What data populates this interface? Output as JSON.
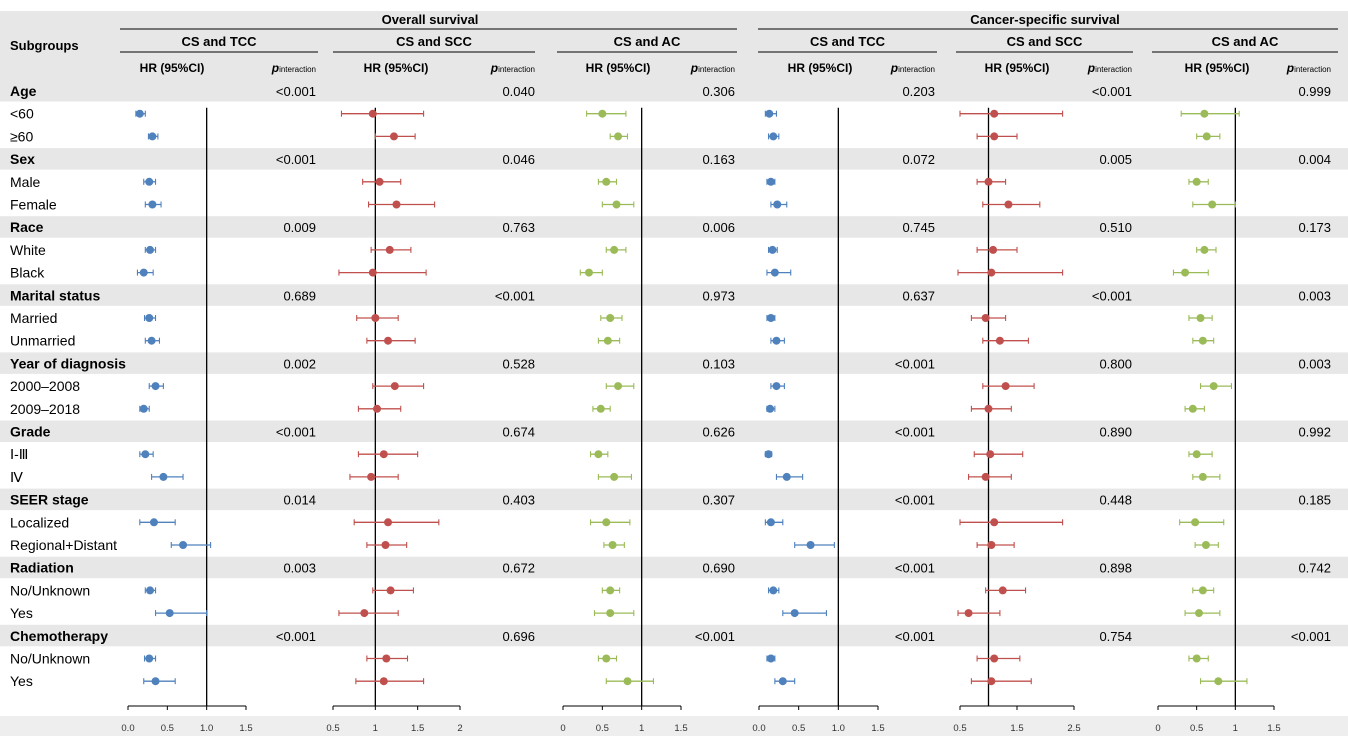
{
  "header": {
    "subgroups_label": "Subgroups",
    "overall_label": "Overall survival",
    "cancer_label": "Cancer-specific survival",
    "hr_label": "HR (95%CI)",
    "p_main": "p",
    "p_sub": "interaction"
  },
  "colors": {
    "blue": "#4f81bd",
    "red": "#c0504d",
    "green": "#9bbb59",
    "band": "#e7e7e7",
    "axis": "#000000"
  },
  "rows": [
    {
      "label": "Age",
      "group": true
    },
    {
      "label": "<60",
      "group": false
    },
    {
      "label": "≥60",
      "group": false
    },
    {
      "label": "Sex",
      "group": true
    },
    {
      "label": "Male",
      "group": false
    },
    {
      "label": "Female",
      "group": false
    },
    {
      "label": "Race",
      "group": true
    },
    {
      "label": "White",
      "group": false
    },
    {
      "label": "Black",
      "group": false
    },
    {
      "label": "Marital status",
      "group": true
    },
    {
      "label": "Married",
      "group": false
    },
    {
      "label": "Unmarried",
      "group": false
    },
    {
      "label": "Year of diagnosis",
      "group": true
    },
    {
      "label": "2000–2008",
      "group": false
    },
    {
      "label": "2009–2018",
      "group": false
    },
    {
      "label": "Grade",
      "group": true
    },
    {
      "label": "Ⅰ-Ⅲ",
      "group": false
    },
    {
      "label": "Ⅳ",
      "group": false
    },
    {
      "label": "SEER stage",
      "group": true
    },
    {
      "label": "Localized",
      "group": false
    },
    {
      "label": "Regional+Distant",
      "group": false
    },
    {
      "label": "Radiation",
      "group": true
    },
    {
      "label": "No/Unknown",
      "group": false
    },
    {
      "label": "Yes",
      "group": false
    },
    {
      "label": "Chemotherapy",
      "group": true
    },
    {
      "label": "No/Unknown",
      "group": false
    },
    {
      "label": "Yes",
      "group": false
    }
  ],
  "chart_data": {
    "type": "forest",
    "panels": [
      {
        "survival": "Overall survival",
        "comparison": "CS and TCC",
        "color": "blue",
        "ticks": [
          0.0,
          0.5,
          1.0,
          1.5
        ],
        "tick_labels": [
          "0.0",
          "0.5",
          "1.0",
          "1.5"
        ],
        "p_values": [
          "<0.001",
          "<0.001",
          "0.009",
          "0.689",
          "0.002",
          "<0.001",
          "0.014",
          "0.003",
          "<0.001"
        ],
        "points": [
          [
            0.15,
            0.1,
            0.22
          ],
          [
            0.31,
            0.26,
            0.38
          ],
          [
            0.27,
            0.2,
            0.35
          ],
          [
            0.31,
            0.22,
            0.42
          ],
          [
            0.28,
            0.22,
            0.35
          ],
          [
            0.2,
            0.12,
            0.32
          ],
          [
            0.27,
            0.21,
            0.35
          ],
          [
            0.3,
            0.22,
            0.4
          ],
          [
            0.35,
            0.27,
            0.45
          ],
          [
            0.2,
            0.15,
            0.27
          ],
          [
            0.22,
            0.15,
            0.32
          ],
          [
            0.45,
            0.3,
            0.7
          ],
          [
            0.33,
            0.15,
            0.6
          ],
          [
            0.7,
            0.55,
            1.05
          ],
          [
            0.28,
            0.22,
            0.35
          ],
          [
            0.53,
            0.35,
            1.0
          ],
          [
            0.27,
            0.21,
            0.35
          ],
          [
            0.35,
            0.2,
            0.6
          ]
        ]
      },
      {
        "survival": "Overall survival",
        "comparison": "CS and SCC",
        "color": "red",
        "ticks": [
          0.5,
          1.0,
          1.5,
          2.0
        ],
        "tick_labels": [
          "0.5",
          "1",
          "1.5",
          "2"
        ],
        "p_values": [
          "0.040",
          "0.046",
          "0.763",
          "<0.001",
          "0.528",
          "0.674",
          "0.403",
          "0.672",
          "0.696"
        ],
        "points": [
          [
            0.97,
            0.6,
            1.57
          ],
          [
            1.22,
            1.0,
            1.47
          ],
          [
            1.05,
            0.85,
            1.3
          ],
          [
            1.25,
            0.92,
            1.7
          ],
          [
            1.17,
            0.95,
            1.42
          ],
          [
            0.97,
            0.57,
            1.6
          ],
          [
            1.0,
            0.78,
            1.27
          ],
          [
            1.15,
            0.9,
            1.47
          ],
          [
            1.23,
            0.97,
            1.57
          ],
          [
            1.02,
            0.8,
            1.3
          ],
          [
            1.1,
            0.8,
            1.5
          ],
          [
            0.95,
            0.7,
            1.27
          ],
          [
            1.15,
            0.75,
            1.75
          ],
          [
            1.12,
            0.9,
            1.37
          ],
          [
            1.18,
            0.97,
            1.45
          ],
          [
            0.87,
            0.57,
            1.27
          ],
          [
            1.13,
            0.9,
            1.38
          ],
          [
            1.1,
            0.77,
            1.57
          ]
        ]
      },
      {
        "survival": "Overall survival",
        "comparison": "CS and AC",
        "color": "green",
        "ticks": [
          0.0,
          0.5,
          1.0,
          1.5
        ],
        "tick_labels": [
          "0",
          "0.5",
          "1",
          "1.5"
        ],
        "p_values": [
          "0.306",
          "0.163",
          "0.006",
          "0.973",
          "0.103",
          "0.626",
          "0.307",
          "0.690",
          "<0.001"
        ],
        "points": [
          [
            0.5,
            0.3,
            0.8
          ],
          [
            0.7,
            0.6,
            0.82
          ],
          [
            0.55,
            0.45,
            0.68
          ],
          [
            0.68,
            0.5,
            0.9
          ],
          [
            0.65,
            0.55,
            0.8
          ],
          [
            0.33,
            0.22,
            0.5
          ],
          [
            0.6,
            0.48,
            0.75
          ],
          [
            0.57,
            0.45,
            0.72
          ],
          [
            0.7,
            0.55,
            0.9
          ],
          [
            0.48,
            0.38,
            0.6
          ],
          [
            0.45,
            0.35,
            0.57
          ],
          [
            0.65,
            0.45,
            0.87
          ],
          [
            0.55,
            0.35,
            0.85
          ],
          [
            0.63,
            0.52,
            0.78
          ],
          [
            0.6,
            0.5,
            0.72
          ],
          [
            0.6,
            0.4,
            0.9
          ],
          [
            0.55,
            0.45,
            0.68
          ],
          [
            0.82,
            0.55,
            1.15
          ]
        ]
      },
      {
        "survival": "Cancer-specific survival",
        "comparison": "CS and TCC",
        "color": "blue",
        "ticks": [
          0.0,
          0.5,
          1.0,
          1.5
        ],
        "tick_labels": [
          "0.0",
          "0.5",
          "1.0",
          "1.5"
        ],
        "p_values": [
          "0.203",
          "0.072",
          "0.745",
          "0.637",
          "<0.001",
          "<0.001",
          "<0.001",
          "<0.001",
          "<0.001"
        ],
        "points": [
          [
            0.13,
            0.08,
            0.22
          ],
          [
            0.18,
            0.12,
            0.25
          ],
          [
            0.15,
            0.1,
            0.2
          ],
          [
            0.23,
            0.15,
            0.35
          ],
          [
            0.17,
            0.12,
            0.23
          ],
          [
            0.2,
            0.1,
            0.4
          ],
          [
            0.15,
            0.1,
            0.2
          ],
          [
            0.22,
            0.15,
            0.32
          ],
          [
            0.22,
            0.15,
            0.32
          ],
          [
            0.14,
            0.1,
            0.2
          ],
          [
            0.12,
            0.08,
            0.16
          ],
          [
            0.35,
            0.22,
            0.55
          ],
          [
            0.15,
            0.08,
            0.3
          ],
          [
            0.65,
            0.45,
            0.95
          ],
          [
            0.18,
            0.12,
            0.25
          ],
          [
            0.45,
            0.3,
            0.85
          ],
          [
            0.15,
            0.1,
            0.2
          ],
          [
            0.3,
            0.2,
            0.45
          ]
        ]
      },
      {
        "survival": "Cancer-specific survival",
        "comparison": "CS and SCC",
        "color": "red",
        "ticks": [
          0.5,
          1.5,
          2.5
        ],
        "tick_labels": [
          "0.5",
          "1.5",
          "2.5"
        ],
        "p_values": [
          "<0.001",
          "0.005",
          "0.510",
          "<0.001",
          "0.800",
          "0.890",
          "0.448",
          "0.898",
          "0.754"
        ],
        "points": [
          [
            1.1,
            0.5,
            2.3
          ],
          [
            1.1,
            0.8,
            1.5
          ],
          [
            1.0,
            0.8,
            1.3
          ],
          [
            1.35,
            0.9,
            1.9
          ],
          [
            1.08,
            0.8,
            1.5
          ],
          [
            1.05,
            0.4,
            2.3
          ],
          [
            0.95,
            0.7,
            1.3
          ],
          [
            1.2,
            0.9,
            1.7
          ],
          [
            1.3,
            0.9,
            1.8
          ],
          [
            1.0,
            0.7,
            1.4
          ],
          [
            1.03,
            0.75,
            1.6
          ],
          [
            0.95,
            0.65,
            1.4
          ],
          [
            1.1,
            0.5,
            2.3
          ],
          [
            1.05,
            0.8,
            1.45
          ],
          [
            1.25,
            0.95,
            1.65
          ],
          [
            0.65,
            0.45,
            1.2
          ],
          [
            1.1,
            0.8,
            1.55
          ],
          [
            1.05,
            0.7,
            1.75
          ]
        ]
      },
      {
        "survival": "Cancer-specific survival",
        "comparison": "CS and AC",
        "color": "green",
        "ticks": [
          0.0,
          0.5,
          1.0,
          1.5
        ],
        "tick_labels": [
          "0",
          "0.5",
          "1",
          "1.5"
        ],
        "p_values": [
          "0.999",
          "0.004",
          "0.173",
          "0.003",
          "0.003",
          "0.992",
          "0.185",
          "0.742",
          "<0.001"
        ],
        "points": [
          [
            0.6,
            0.3,
            1.05
          ],
          [
            0.63,
            0.5,
            0.8
          ],
          [
            0.5,
            0.4,
            0.65
          ],
          [
            0.7,
            0.45,
            1.0
          ],
          [
            0.6,
            0.5,
            0.75
          ],
          [
            0.35,
            0.2,
            0.65
          ],
          [
            0.55,
            0.4,
            0.7
          ],
          [
            0.58,
            0.45,
            0.72
          ],
          [
            0.72,
            0.55,
            0.95
          ],
          [
            0.45,
            0.35,
            0.6
          ],
          [
            0.5,
            0.4,
            0.7
          ],
          [
            0.58,
            0.45,
            0.8
          ],
          [
            0.48,
            0.28,
            0.85
          ],
          [
            0.62,
            0.48,
            0.78
          ],
          [
            0.58,
            0.45,
            0.72
          ],
          [
            0.53,
            0.35,
            0.8
          ],
          [
            0.5,
            0.4,
            0.65
          ],
          [
            0.78,
            0.55,
            1.15
          ]
        ]
      }
    ]
  }
}
